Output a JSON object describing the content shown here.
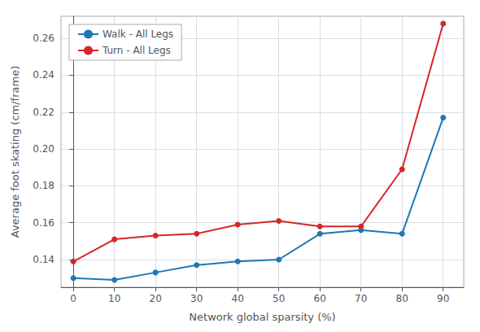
{
  "chart_data": {
    "type": "line",
    "xlabel": "Network global sparsity (%)",
    "ylabel": "Average foot skating (cm/frame)",
    "x": [
      0,
      10,
      20,
      30,
      40,
      50,
      60,
      70,
      80,
      90
    ],
    "series": [
      {
        "name": "Walk - All Legs",
        "color": "#1f77b4",
        "marker": "circle",
        "values": [
          0.13,
          0.129,
          0.133,
          0.137,
          0.139,
          0.14,
          0.154,
          0.156,
          0.154,
          0.217
        ]
      },
      {
        "name": "Turn - All Legs",
        "color": "#d62728",
        "marker": "circle",
        "values": [
          0.139,
          0.151,
          0.153,
          0.154,
          0.159,
          0.161,
          0.158,
          0.158,
          0.189,
          0.268
        ]
      }
    ],
    "xlim": [
      -3,
      95
    ],
    "xticks": [
      0,
      10,
      20,
      30,
      40,
      50,
      60,
      70,
      80,
      90
    ],
    "ylim": [
      0.125,
      0.272
    ],
    "yticks": [
      0.14,
      0.16,
      0.18,
      {
        "value": 0.2,
        "label": "0.20"
      },
      0.22,
      0.24,
      0.26
    ],
    "grid": true,
    "legend": "upper left"
  }
}
